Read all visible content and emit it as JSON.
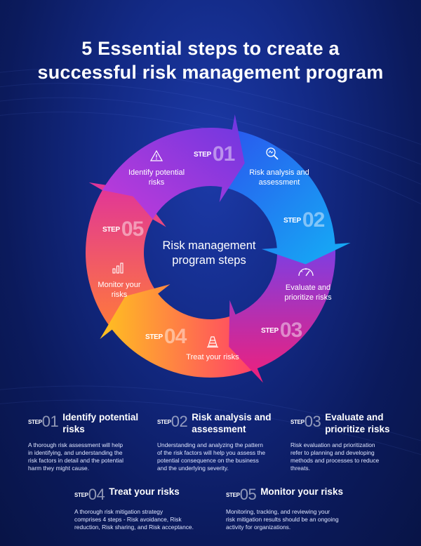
{
  "title": {
    "line1": "5 Essential steps to create a",
    "line2": "successful risk management program"
  },
  "center": {
    "line1": "Risk management",
    "line2": "program steps"
  },
  "step_word": "STEP",
  "steps": [
    {
      "number": "01",
      "wheel_label_1": "Identify potential",
      "wheel_label_2": "risks",
      "icon": "warning-triangle-icon",
      "card_title_1": "Identify potential",
      "card_title_2": "risks",
      "description_1": "A thorough risk assessment will help",
      "description_2": "in identifying, and understanding the",
      "description_3": "risk factors in detail and the potential",
      "description_4": "harm they might cause."
    },
    {
      "number": "02",
      "wheel_label_1": "Risk analysis and",
      "wheel_label_2": "assessment",
      "icon": "magnifier-icon",
      "card_title_1": "Risk analysis and",
      "card_title_2": "assessment",
      "description_1": "Understanding and analyzing the pattern",
      "description_2": "of the risk factors will help you assess the",
      "description_3": "potential consequence on the business",
      "description_4": "and the underlying severity."
    },
    {
      "number": "03",
      "wheel_label_1": "Evaluate and",
      "wheel_label_2": "prioritize risks",
      "icon": "gauge-icon",
      "card_title_1": "Evaluate and",
      "card_title_2": "prioritize risks",
      "description_1": "Risk evaluation and prioritization",
      "description_2": "refer to planning and developing",
      "description_3": "methods and processes to reduce",
      "description_4": "threats."
    },
    {
      "number": "04",
      "wheel_label_1": "Treat your risks",
      "wheel_label_2": "",
      "icon": "road-cone-icon",
      "card_title_1": "Treat your risks",
      "card_title_2": "",
      "description_1": "A thorough risk mitigation strategy",
      "description_2": "comprises 4 steps - Risk avoidance, Risk",
      "description_3": "reduction, Risk sharing, and Risk acceptance.",
      "description_4": ""
    },
    {
      "number": "05",
      "wheel_label_1": "Monitor your",
      "wheel_label_2": "risks",
      "icon": "bar-chart-icon",
      "card_title_1": "Monitor your risks",
      "card_title_2": "",
      "description_1": "Monitoring, tracking, and reviewing your",
      "description_2": "risk mitigation results should be an ongoing",
      "description_3": "activity for organizations.",
      "description_4": ""
    }
  ],
  "colors": {
    "background": "#132a86",
    "segment_1": "#8a2fd6",
    "segment_2": "#1f7cf0",
    "segment_3": "#e21e8c",
    "segment_4": "#ffb020",
    "segment_5": "#ff4a6e"
  }
}
